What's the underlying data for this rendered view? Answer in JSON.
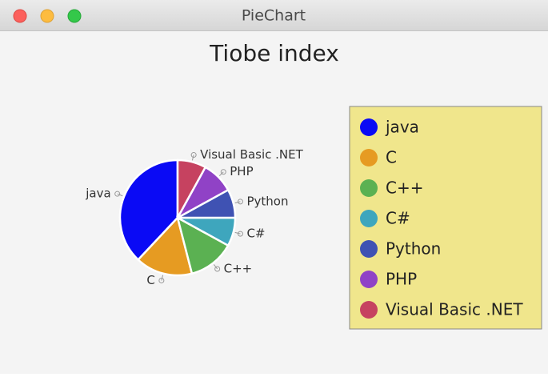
{
  "window": {
    "title": "PieChart"
  },
  "chart_data": {
    "type": "pie",
    "title": "Tiobe index",
    "categories": [
      "java",
      "C",
      "C++",
      "C#",
      "Python",
      "PHP",
      "Visual Basic .NET"
    ],
    "values": [
      38,
      16,
      13,
      8,
      8,
      9,
      8
    ],
    "colors": [
      "#0a0af5",
      "#e69b22",
      "#5bb152",
      "#3ea6bd",
      "#3f52b3",
      "#9042c6",
      "#c64260"
    ],
    "legend": "right"
  }
}
